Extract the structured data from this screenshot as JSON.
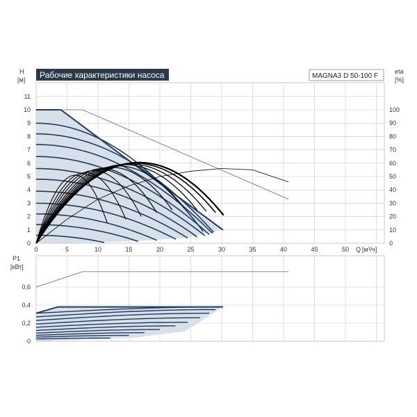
{
  "title": "Рабочие характеристики насоса",
  "model": "MAGNA3 D 50-100 F",
  "colors": {
    "title_bg": "#2b3a4a",
    "area_fill": "#d7dfe9",
    "curve": "#1f3b60",
    "grid": "#c8c8c8",
    "eta_curve": "#000000",
    "ref_line": "#4a6a9a"
  },
  "chart_data": [
    {
      "type": "line",
      "name": "head",
      "ylabel_top": "H",
      "yunit": "[м]",
      "ylabel_right_top": "eta",
      "yunit_right": "[%]",
      "xlabel_top": "Q",
      "xunit": "[м³/ч]",
      "xlim": [
        0,
        55
      ],
      "ylim": [
        0,
        11
      ],
      "ylim_right": [
        0,
        110
      ],
      "x_ticks": [
        "0",
        "5",
        "10",
        "15",
        "20",
        "25",
        "30",
        "35",
        "40",
        "45",
        "50"
      ],
      "y_ticks": [
        "0",
        "1",
        "2",
        "3",
        "4",
        "5",
        "6",
        "7",
        "8",
        "9",
        "10",
        "11"
      ],
      "y_right_ticks": [
        "0",
        "10",
        "20",
        "30",
        "40",
        "50",
        "60",
        "70",
        "80",
        "90",
        "100"
      ],
      "grid": true,
      "max_curve": [
        [
          0,
          10
        ],
        [
          4,
          10
        ],
        [
          15,
          6.2
        ],
        [
          30.2,
          1
        ]
      ],
      "ref_line": [
        [
          7.5,
          10
        ],
        [
          40.8,
          3.3
        ]
      ],
      "speed_curves": [
        {
          "h0": 9,
          "qmax": 27
        },
        {
          "h0": 8.2,
          "qmax": 28.7
        },
        {
          "h0": 7.4,
          "qmax": 28.5
        },
        {
          "h0": 6.5,
          "qmax": 28
        },
        {
          "h0": 5.6,
          "qmax": 27.3
        },
        {
          "h0": 4.8,
          "qmax": 26
        },
        {
          "h0": 3.9,
          "qmax": 24.5
        },
        {
          "h0": 3.0,
          "qmax": 22.6
        },
        {
          "h0": 2.2,
          "qmax": 19.5
        },
        {
          "h0": 1.4,
          "qmax": 16.5
        },
        {
          "h0": 0.6,
          "qmax": 11
        }
      ],
      "eta_curves": [
        {
          "qmax": 30.3,
          "peak": 60.5,
          "end": 21,
          "w": 2.2
        },
        {
          "qmax": 29.0,
          "peak": 60.0,
          "end": 23,
          "w": 1.6
        },
        {
          "qmax": 27.5,
          "peak": 59.5,
          "end": 24,
          "w": 1.3
        },
        {
          "qmax": 26.0,
          "peak": 59.0,
          "end": 25,
          "w": 1.3
        },
        {
          "qmax": 24.0,
          "peak": 58.0,
          "end": 26,
          "w": 1.2
        },
        {
          "qmax": 22.0,
          "peak": 57.0,
          "end": 25,
          "w": 1.2
        },
        {
          "qmax": 19.5,
          "peak": 56.0,
          "end": 23,
          "w": 1.2
        },
        {
          "qmax": 17.0,
          "peak": 54.5,
          "end": 20,
          "w": 1.1
        },
        {
          "qmax": 14.5,
          "peak": 53.0,
          "end": 18,
          "w": 1.1
        },
        {
          "qmax": 11.5,
          "peak": 51.0,
          "end": 15,
          "w": 1.1
        }
      ],
      "eta_thin": [
        [
          0,
          0
        ],
        [
          5,
          18
        ],
        [
          10,
          33
        ],
        [
          15,
          43
        ],
        [
          20,
          50
        ],
        [
          25,
          54
        ],
        [
          30,
          56
        ],
        [
          35,
          55
        ],
        [
          40.8,
          46
        ]
      ]
    },
    {
      "type": "line",
      "name": "power",
      "ylabel_top": "P1",
      "yunit": "[кВт]",
      "xlim": [
        0,
        55
      ],
      "ylim": [
        0,
        0.75
      ],
      "y_ticks": [
        "0",
        "0,2",
        "0,4",
        "0,6"
      ],
      "grid": true,
      "max_power": [
        [
          0,
          0.6
        ],
        [
          7.5,
          0.77
        ],
        [
          40.8,
          0.77
        ]
      ],
      "max_area_top": [
        [
          0,
          0.31
        ],
        [
          3.5,
          0.38
        ],
        [
          30.2,
          0.38
        ]
      ],
      "max_area_bottom": [
        [
          0,
          0
        ],
        [
          30.2,
          0.38
        ]
      ],
      "speed_curves": [
        {
          "p0": 0.31,
          "qmax": 30.2,
          "pend": 0.38
        },
        {
          "p0": 0.27,
          "qmax": 29.0,
          "pend": 0.35
        },
        {
          "p0": 0.23,
          "qmax": 28.0,
          "pend": 0.31
        },
        {
          "p0": 0.19,
          "qmax": 26.5,
          "pend": 0.26
        },
        {
          "p0": 0.155,
          "qmax": 24.5,
          "pend": 0.21
        },
        {
          "p0": 0.12,
          "qmax": 22.5,
          "pend": 0.17
        },
        {
          "p0": 0.09,
          "qmax": 20.0,
          "pend": 0.13
        },
        {
          "p0": 0.065,
          "qmax": 17.5,
          "pend": 0.095
        },
        {
          "p0": 0.045,
          "qmax": 15.0,
          "pend": 0.065
        },
        {
          "p0": 0.025,
          "qmax": 12.0,
          "pend": 0.035
        }
      ]
    }
  ]
}
